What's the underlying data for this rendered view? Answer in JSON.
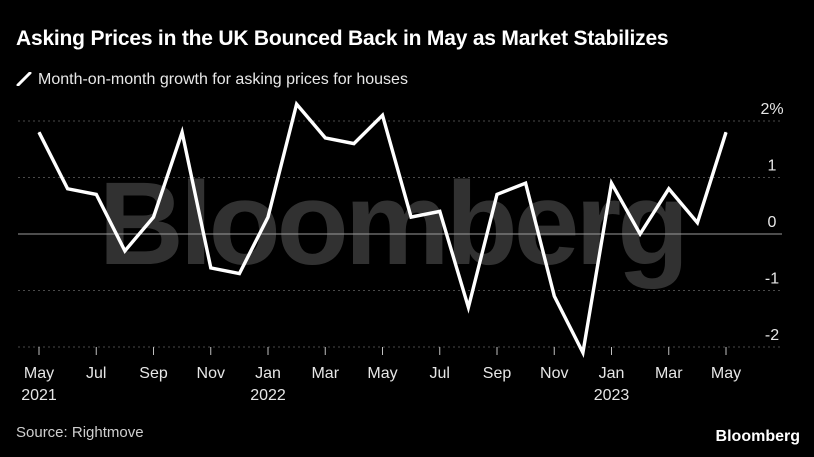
{
  "header": {
    "title": "Asking Prices in the UK Bounced Back in May as Market Stabilizes",
    "legend_label": "Month-on-month growth for asking prices for houses"
  },
  "footer": {
    "source": "Source: Rightmove",
    "brand": "Bloomberg"
  },
  "watermark": "Bloomberg",
  "colors": {
    "background": "#000000",
    "line": "#ffffff",
    "grid": "#4a4a4a",
    "zero_line": "#9a9a9a"
  },
  "chart_data": {
    "type": "line",
    "title": "Asking Prices in the UK Bounced Back in May as Market Stabilizes",
    "ylim": [
      -2.2,
      2.2
    ],
    "y_ticks": [
      2,
      1,
      0,
      -1,
      -2
    ],
    "y_tick_labels": [
      "2%",
      "1",
      "0",
      "-1",
      "-2"
    ],
    "y_axis_position": "right",
    "grid": true,
    "x": [
      "2021-05",
      "2021-06",
      "2021-07",
      "2021-08",
      "2021-09",
      "2021-10",
      "2021-11",
      "2021-12",
      "2022-01",
      "2022-02",
      "2022-03",
      "2022-04",
      "2022-05",
      "2022-06",
      "2022-07",
      "2022-08",
      "2022-09",
      "2022-10",
      "2022-11",
      "2022-12",
      "2023-01",
      "2023-02",
      "2023-03",
      "2023-04",
      "2023-05"
    ],
    "x_tick_labels": [
      {
        "x": "2021-05",
        "label": "May",
        "year": "2021"
      },
      {
        "x": "2021-07",
        "label": "Jul",
        "year": ""
      },
      {
        "x": "2021-09",
        "label": "Sep",
        "year": ""
      },
      {
        "x": "2021-11",
        "label": "Nov",
        "year": ""
      },
      {
        "x": "2022-01",
        "label": "Jan",
        "year": "2022"
      },
      {
        "x": "2022-03",
        "label": "Mar",
        "year": ""
      },
      {
        "x": "2022-05",
        "label": "May",
        "year": ""
      },
      {
        "x": "2022-07",
        "label": "Jul",
        "year": ""
      },
      {
        "x": "2022-09",
        "label": "Sep",
        "year": ""
      },
      {
        "x": "2022-11",
        "label": "Nov",
        "year": ""
      },
      {
        "x": "2023-01",
        "label": "Jan",
        "year": "2023"
      },
      {
        "x": "2023-03",
        "label": "Mar",
        "year": ""
      },
      {
        "x": "2023-05",
        "label": "May",
        "year": ""
      }
    ],
    "series": [
      {
        "name": "Month-on-month growth for asking prices for houses",
        "color": "#ffffff",
        "values": [
          1.8,
          0.8,
          0.7,
          -0.3,
          0.3,
          1.8,
          -0.6,
          -0.7,
          0.3,
          2.3,
          1.7,
          1.6,
          2.1,
          0.3,
          0.4,
          -1.3,
          0.7,
          0.9,
          -1.1,
          -2.1,
          0.9,
          0.0,
          0.8,
          0.2,
          1.8
        ]
      }
    ]
  }
}
